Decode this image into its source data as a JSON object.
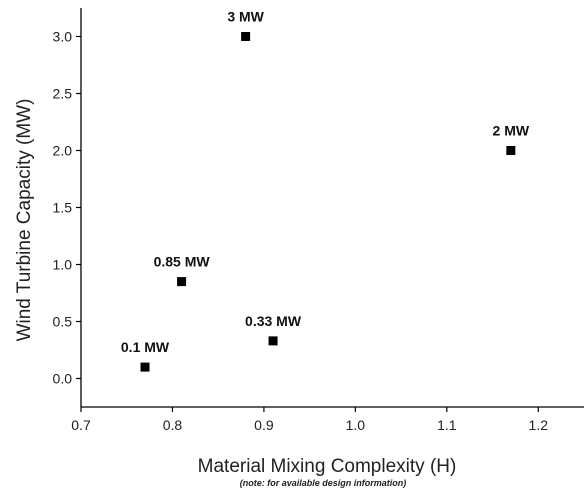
{
  "chart_data": {
    "type": "scatter",
    "title": "",
    "xlabel": "Material Mixing Complexity (H)",
    "ylabel": "Wind Turbine Capacity (MW)",
    "note": "(note: for available design information)",
    "xlim": [
      0.7,
      1.25
    ],
    "ylim": [
      -0.25,
      3.25
    ],
    "x_ticks": [
      0.7,
      0.8,
      0.9,
      1.0,
      1.1,
      1.2
    ],
    "x_tick_labels": [
      "0.7",
      "0.8",
      "0.9",
      "1.0",
      "1.1",
      "1.2"
    ],
    "y_ticks": [
      0.0,
      0.5,
      1.0,
      1.5,
      2.0,
      2.5,
      3.0
    ],
    "y_tick_labels": [
      "0.0",
      "0.5",
      "1.0",
      "1.5",
      "2.0",
      "2.5",
      "3.0"
    ],
    "grid": false,
    "legend": "none",
    "marker": "square",
    "marker_color": "#000000",
    "points": [
      {
        "x": 0.77,
        "y": 0.1,
        "label": "0.1 MW"
      },
      {
        "x": 0.81,
        "y": 0.85,
        "label": "0.85 MW"
      },
      {
        "x": 0.88,
        "y": 3.0,
        "label": "3 MW"
      },
      {
        "x": 0.91,
        "y": 0.33,
        "label": "0.33 MW"
      },
      {
        "x": 1.17,
        "y": 2.0,
        "label": "2 MW"
      }
    ]
  }
}
